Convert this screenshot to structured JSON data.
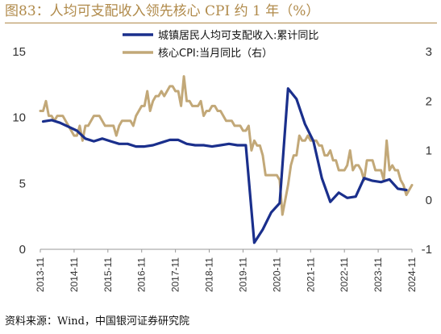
{
  "title": "图83：人均可支配收入领先核心 CPI 约 1 年（%）",
  "source": "资料来源：Wind，中国银河证券研究院",
  "colors": {
    "accent": "#b08a4a",
    "income": "#1a2f8c",
    "cpi": "#c2a878",
    "axis": "#999999"
  },
  "chart_data": {
    "type": "line",
    "x_tick_labels": [
      "2013-11",
      "2014-11",
      "2015-11",
      "2016-11",
      "2017-11",
      "2018-11",
      "2019-11",
      "2020-11",
      "2021-11",
      "2022-11",
      "2023-11",
      "2024-11"
    ],
    "y_left": {
      "range": [
        0,
        15
      ],
      "ticks": [
        "0",
        "5",
        "10",
        "15"
      ]
    },
    "y_right": {
      "range": [
        -1,
        3
      ],
      "ticks": [
        "-1",
        "0",
        "1",
        "2",
        "3"
      ]
    },
    "legend_position": "top-center",
    "series": [
      {
        "name": "城镇居民人均可支配收入:累计同比",
        "axis": "left",
        "points": [
          [
            "2013-12",
            9.7
          ],
          [
            "2014-03",
            9.8
          ],
          [
            "2014-06",
            9.6
          ],
          [
            "2014-09",
            9.3
          ],
          [
            "2014-12",
            9.0
          ],
          [
            "2015-03",
            8.4
          ],
          [
            "2015-06",
            8.2
          ],
          [
            "2015-09",
            8.4
          ],
          [
            "2015-12",
            8.2
          ],
          [
            "2016-03",
            8.0
          ],
          [
            "2016-06",
            8.0
          ],
          [
            "2016-09",
            7.8
          ],
          [
            "2016-12",
            7.8
          ],
          [
            "2017-03",
            7.9
          ],
          [
            "2017-06",
            8.1
          ],
          [
            "2017-09",
            8.3
          ],
          [
            "2017-12",
            8.3
          ],
          [
            "2018-03",
            8.0
          ],
          [
            "2018-06",
            7.9
          ],
          [
            "2018-09",
            7.9
          ],
          [
            "2018-12",
            7.8
          ],
          [
            "2019-03",
            7.9
          ],
          [
            "2019-06",
            8.0
          ],
          [
            "2019-09",
            7.9
          ],
          [
            "2019-12",
            7.9
          ],
          [
            "2020-03",
            0.5
          ],
          [
            "2020-06",
            1.5
          ],
          [
            "2020-09",
            2.8
          ],
          [
            "2020-12",
            3.5
          ],
          [
            "2021-03",
            12.2
          ],
          [
            "2021-06",
            11.4
          ],
          [
            "2021-09",
            9.5
          ],
          [
            "2021-12",
            8.2
          ],
          [
            "2022-03",
            5.4
          ],
          [
            "2022-06",
            3.6
          ],
          [
            "2022-09",
            4.3
          ],
          [
            "2022-12",
            3.9
          ],
          [
            "2023-03",
            4.0
          ],
          [
            "2023-06",
            5.4
          ],
          [
            "2023-09",
            5.2
          ],
          [
            "2023-12",
            5.1
          ],
          [
            "2024-03",
            5.3
          ],
          [
            "2024-06",
            4.6
          ],
          [
            "2024-09",
            4.5
          ]
        ]
      },
      {
        "name": "核心CPI:当月同比（右）",
        "axis": "right",
        "points": [
          [
            "2013-11",
            1.8
          ],
          [
            "2013-12",
            1.8
          ],
          [
            "2014-01",
            2.0
          ],
          [
            "2014-02",
            1.7
          ],
          [
            "2014-03",
            1.7
          ],
          [
            "2014-04",
            1.6
          ],
          [
            "2014-05",
            1.7
          ],
          [
            "2014-06",
            1.7
          ],
          [
            "2014-07",
            1.7
          ],
          [
            "2014-08",
            1.6
          ],
          [
            "2014-09",
            1.5
          ],
          [
            "2014-10",
            1.4
          ],
          [
            "2014-11",
            1.3
          ],
          [
            "2014-12",
            1.3
          ],
          [
            "2015-01",
            1.5
          ],
          [
            "2015-02",
            1.2
          ],
          [
            "2015-03",
            1.5
          ],
          [
            "2015-04",
            1.5
          ],
          [
            "2015-05",
            1.6
          ],
          [
            "2015-06",
            1.7
          ],
          [
            "2015-07",
            1.7
          ],
          [
            "2015-08",
            1.7
          ],
          [
            "2015-09",
            1.6
          ],
          [
            "2015-10",
            1.5
          ],
          [
            "2015-11",
            1.5
          ],
          [
            "2015-12",
            1.5
          ],
          [
            "2016-01",
            1.5
          ],
          [
            "2016-02",
            1.3
          ],
          [
            "2016-03",
            1.5
          ],
          [
            "2016-04",
            1.6
          ],
          [
            "2016-05",
            1.6
          ],
          [
            "2016-06",
            1.6
          ],
          [
            "2016-07",
            1.6
          ],
          [
            "2016-08",
            1.5
          ],
          [
            "2016-09",
            1.7
          ],
          [
            "2016-10",
            1.8
          ],
          [
            "2016-11",
            1.9
          ],
          [
            "2016-12",
            1.9
          ],
          [
            "2017-01",
            2.2
          ],
          [
            "2017-02",
            1.8
          ],
          [
            "2017-03",
            2.0
          ],
          [
            "2017-04",
            2.1
          ],
          [
            "2017-05",
            2.1
          ],
          [
            "2017-06",
            2.2
          ],
          [
            "2017-07",
            2.1
          ],
          [
            "2017-08",
            2.2
          ],
          [
            "2017-09",
            2.3
          ],
          [
            "2017-10",
            2.3
          ],
          [
            "2017-11",
            2.2
          ],
          [
            "2017-12",
            2.2
          ],
          [
            "2018-01",
            1.9
          ],
          [
            "2018-02",
            2.5
          ],
          [
            "2018-03",
            2.0
          ],
          [
            "2018-04",
            2.0
          ],
          [
            "2018-05",
            1.9
          ],
          [
            "2018-06",
            1.9
          ],
          [
            "2018-07",
            1.9
          ],
          [
            "2018-08",
            2.0
          ],
          [
            "2018-09",
            1.7
          ],
          [
            "2018-10",
            1.8
          ],
          [
            "2018-11",
            1.8
          ],
          [
            "2018-12",
            1.9
          ],
          [
            "2019-01",
            1.9
          ],
          [
            "2019-02",
            1.8
          ],
          [
            "2019-03",
            1.8
          ],
          [
            "2019-04",
            1.7
          ],
          [
            "2019-05",
            1.6
          ],
          [
            "2019-06",
            1.6
          ],
          [
            "2019-07",
            1.6
          ],
          [
            "2019-08",
            1.5
          ],
          [
            "2019-09",
            1.5
          ],
          [
            "2019-10",
            1.5
          ],
          [
            "2019-11",
            1.4
          ],
          [
            "2019-12",
            1.4
          ],
          [
            "2020-01",
            1.5
          ],
          [
            "2020-02",
            1.0
          ],
          [
            "2020-03",
            1.2
          ],
          [
            "2020-04",
            1.1
          ],
          [
            "2020-05",
            1.1
          ],
          [
            "2020-06",
            0.9
          ],
          [
            "2020-07",
            0.5
          ],
          [
            "2020-08",
            0.5
          ],
          [
            "2020-09",
            0.5
          ],
          [
            "2020-10",
            0.5
          ],
          [
            "2020-11",
            0.5
          ],
          [
            "2020-12",
            0.4
          ],
          [
            "2021-01",
            -0.3
          ],
          [
            "2021-02",
            0.0
          ],
          [
            "2021-03",
            0.3
          ],
          [
            "2021-04",
            0.7
          ],
          [
            "2021-05",
            0.9
          ],
          [
            "2021-06",
            0.9
          ],
          [
            "2021-07",
            1.3
          ],
          [
            "2021-08",
            1.2
          ],
          [
            "2021-09",
            1.2
          ],
          [
            "2021-10",
            1.3
          ],
          [
            "2021-11",
            1.2
          ],
          [
            "2021-12",
            1.2
          ],
          [
            "2022-01",
            1.2
          ],
          [
            "2022-02",
            1.1
          ],
          [
            "2022-03",
            1.1
          ],
          [
            "2022-04",
            0.9
          ],
          [
            "2022-05",
            0.9
          ],
          [
            "2022-06",
            1.0
          ],
          [
            "2022-07",
            0.8
          ],
          [
            "2022-08",
            0.8
          ],
          [
            "2022-09",
            0.6
          ],
          [
            "2022-10",
            0.6
          ],
          [
            "2022-11",
            0.6
          ],
          [
            "2022-12",
            0.7
          ],
          [
            "2023-01",
            1.0
          ],
          [
            "2023-02",
            0.6
          ],
          [
            "2023-03",
            0.7
          ],
          [
            "2023-04",
            0.7
          ],
          [
            "2023-05",
            0.6
          ],
          [
            "2023-06",
            0.4
          ],
          [
            "2023-07",
            0.8
          ],
          [
            "2023-08",
            0.8
          ],
          [
            "2023-09",
            0.8
          ],
          [
            "2023-10",
            0.6
          ],
          [
            "2023-11",
            0.6
          ],
          [
            "2023-12",
            0.6
          ],
          [
            "2024-01",
            0.4
          ],
          [
            "2024-02",
            1.2
          ],
          [
            "2024-03",
            0.6
          ],
          [
            "2024-04",
            0.7
          ],
          [
            "2024-05",
            0.6
          ],
          [
            "2024-06",
            0.6
          ],
          [
            "2024-07",
            0.4
          ],
          [
            "2024-08",
            0.3
          ],
          [
            "2024-09",
            0.1
          ],
          [
            "2024-10",
            0.2
          ],
          [
            "2024-11",
            0.3
          ]
        ]
      }
    ]
  }
}
